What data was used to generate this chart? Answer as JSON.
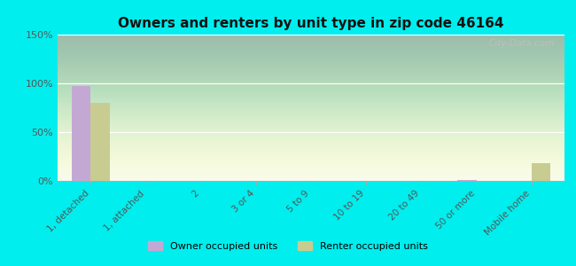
{
  "title": "Owners and renters by unit type in zip code 46164",
  "categories": [
    "1, detached",
    "1, attached",
    "2",
    "3 or 4",
    "5 to 9",
    "10 to 19",
    "20 to 49",
    "50 or more",
    "Mobile home"
  ],
  "owner_values": [
    97,
    0,
    0,
    0,
    0,
    0,
    0,
    1,
    0
  ],
  "renter_values": [
    80,
    0,
    0,
    0,
    0,
    0,
    0,
    0,
    18
  ],
  "owner_color": "#c4a8d4",
  "renter_color": "#c8cc90",
  "background_color": "#00eeee",
  "ylim": [
    0,
    150
  ],
  "yticks": [
    0,
    50,
    100,
    150
  ],
  "ytick_labels": [
    "0%",
    "50%",
    "100%",
    "150%"
  ],
  "watermark": "City-Data.com",
  "bar_width": 0.35
}
